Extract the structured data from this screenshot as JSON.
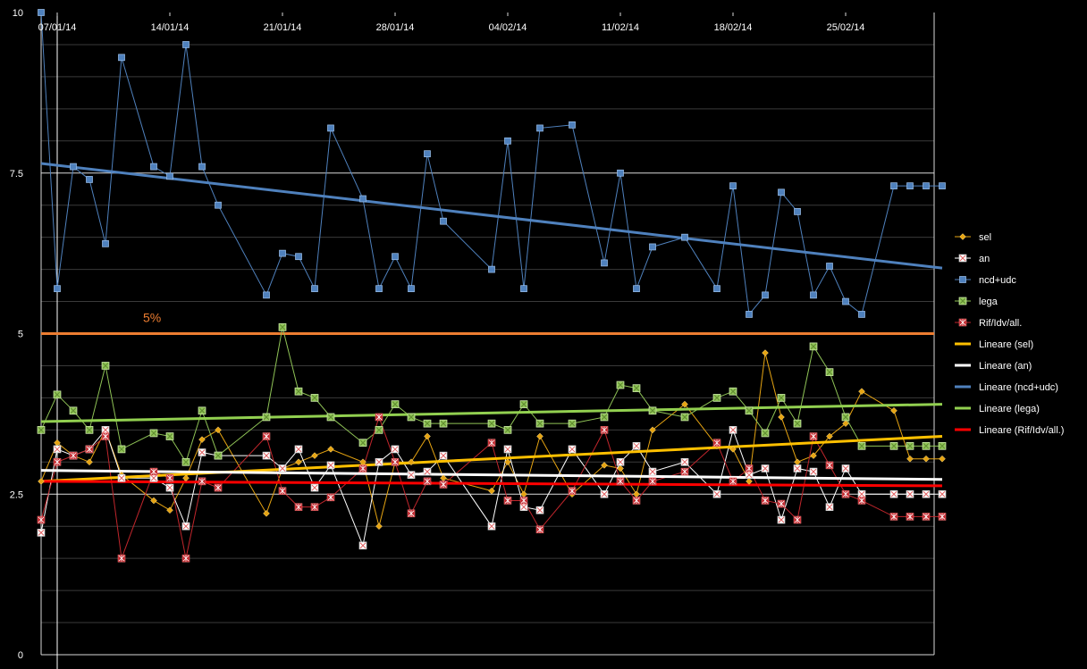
{
  "chart_data": {
    "type": "line",
    "title": "",
    "xlabel": "",
    "ylabel": "",
    "x_tick_labels": [
      "07/01/14",
      "14/01/14",
      "21/01/14",
      "28/01/14",
      "04/02/14",
      "11/02/14",
      "18/02/14",
      "25/02/14"
    ],
    "y_tick_labels": [
      "0",
      "2.5",
      "5",
      "7.5",
      "10"
    ],
    "ylim": [
      0,
      10
    ],
    "grid": "horizontal",
    "legend_position": "right",
    "threshold": {
      "value": 5,
      "label": "5%",
      "color": "#ed7d31"
    },
    "x": [
      "2014-01-06",
      "2014-01-07",
      "2014-01-08",
      "2014-01-09",
      "2014-01-10",
      "2014-01-11",
      "2014-01-13",
      "2014-01-14",
      "2014-01-15",
      "2014-01-16",
      "2014-01-17",
      "2014-01-20",
      "2014-01-21",
      "2014-01-22",
      "2014-01-23",
      "2014-01-24",
      "2014-01-26",
      "2014-01-27",
      "2014-01-28",
      "2014-01-29",
      "2014-01-30",
      "2014-01-31",
      "2014-02-03",
      "2014-02-04",
      "2014-02-05",
      "2014-02-06",
      "2014-02-08",
      "2014-02-10",
      "2014-02-11",
      "2014-02-12",
      "2014-02-13",
      "2014-02-15",
      "2014-02-17",
      "2014-02-18",
      "2014-02-19",
      "2014-02-20",
      "2014-02-21",
      "2014-02-22",
      "2014-02-23",
      "2014-02-24",
      "2014-02-25",
      "2014-02-26",
      "2014-02-28",
      "2014-03-01",
      "2014-03-02",
      "2014-03-03"
    ],
    "series": [
      {
        "name": "sel",
        "color": "#e6a412",
        "marker": "diamond",
        "values": [
          2.7,
          3.3,
          3.1,
          3.0,
          3.5,
          2.8,
          2.4,
          2.25,
          2.75,
          3.35,
          3.5,
          2.2,
          2.9,
          3.0,
          3.1,
          3.2,
          3.0,
          2.0,
          3.0,
          3.0,
          3.4,
          2.75,
          2.55,
          3.0,
          2.5,
          3.4,
          2.5,
          2.95,
          2.9,
          2.5,
          3.5,
          3.9,
          3.25,
          3.2,
          2.7,
          4.7,
          3.7,
          3.0,
          3.1,
          3.4,
          3.6,
          4.1,
          3.8,
          3.05,
          3.05,
          3.05
        ]
      },
      {
        "name": "an",
        "color": "#ffffff",
        "marker": "x-square",
        "values": [
          1.9,
          3.2,
          3.1,
          3.2,
          3.5,
          2.75,
          2.75,
          2.6,
          2.0,
          3.15,
          3.1,
          3.1,
          2.9,
          3.2,
          2.6,
          2.95,
          1.7,
          3.0,
          3.2,
          2.8,
          2.85,
          3.1,
          2.0,
          3.2,
          2.3,
          2.25,
          3.2,
          2.5,
          3.0,
          3.25,
          2.85,
          3.0,
          2.5,
          3.5,
          2.8,
          2.9,
          2.1,
          2.9,
          2.85,
          2.3,
          2.9,
          2.5,
          2.5,
          2.5,
          2.5,
          2.5
        ]
      },
      {
        "name": "ncd+udc",
        "color": "#4f81bd",
        "marker": "square",
        "values": [
          10.0,
          5.7,
          7.6,
          7.4,
          6.4,
          9.3,
          7.6,
          7.45,
          9.5,
          7.6,
          7.0,
          5.6,
          6.25,
          6.2,
          5.7,
          8.2,
          7.1,
          5.7,
          6.2,
          5.7,
          7.8,
          6.75,
          6.0,
          8.0,
          5.7,
          8.2,
          8.25,
          6.1,
          7.5,
          5.7,
          6.35,
          6.5,
          5.7,
          7.3,
          5.3,
          5.6,
          7.2,
          6.9,
          5.6,
          6.05,
          5.5,
          5.3,
          7.3,
          7.3,
          7.3,
          7.3
        ]
      },
      {
        "name": "lega",
        "color": "#8fc356",
        "marker": "x-square",
        "values": [
          3.5,
          4.05,
          3.8,
          3.5,
          4.5,
          3.2,
          3.45,
          3.4,
          3.0,
          3.8,
          3.1,
          3.7,
          5.1,
          4.1,
          4.0,
          3.7,
          3.3,
          3.5,
          3.9,
          3.7,
          3.6,
          3.6,
          3.6,
          3.5,
          3.9,
          3.6,
          3.6,
          3.7,
          4.2,
          4.15,
          3.8,
          3.7,
          4.0,
          4.1,
          3.8,
          3.45,
          4.0,
          3.6,
          4.8,
          4.4,
          3.7,
          3.25,
          3.25,
          3.25,
          3.25,
          3.25
        ]
      },
      {
        "name": "Rif/Idv/all.",
        "color": "#c0262c",
        "marker": "asterisk",
        "values": [
          2.1,
          3.0,
          3.1,
          3.2,
          3.4,
          1.5,
          2.85,
          2.75,
          1.5,
          2.7,
          2.6,
          3.4,
          2.55,
          2.3,
          2.3,
          2.45,
          2.9,
          3.7,
          3.0,
          2.2,
          2.7,
          2.65,
          3.3,
          2.4,
          2.4,
          1.95,
          2.55,
          3.5,
          2.7,
          2.4,
          2.7,
          2.85,
          3.3,
          2.7,
          2.9,
          2.4,
          2.35,
          2.1,
          3.4,
          2.95,
          2.5,
          2.4,
          2.15,
          2.15,
          2.15,
          2.15
        ]
      }
    ],
    "trendlines": [
      {
        "name": "Lineare (sel)",
        "color": "#ffc000",
        "start": 2.7,
        "end": 3.4
      },
      {
        "name": "Lineare (an)",
        "color": "#ffffff",
        "start": 2.87,
        "end": 2.73
      },
      {
        "name": "Lineare (ncd+udc)",
        "color": "#4f81bd",
        "start": 7.65,
        "end": 6.02
      },
      {
        "name": "Lineare (lega)",
        "color": "#92d050",
        "start": 3.63,
        "end": 3.9
      },
      {
        "name": "Lineare (Rif/Idv/all.)",
        "color": "#ff0000",
        "start": 2.7,
        "end": 2.63
      }
    ]
  }
}
